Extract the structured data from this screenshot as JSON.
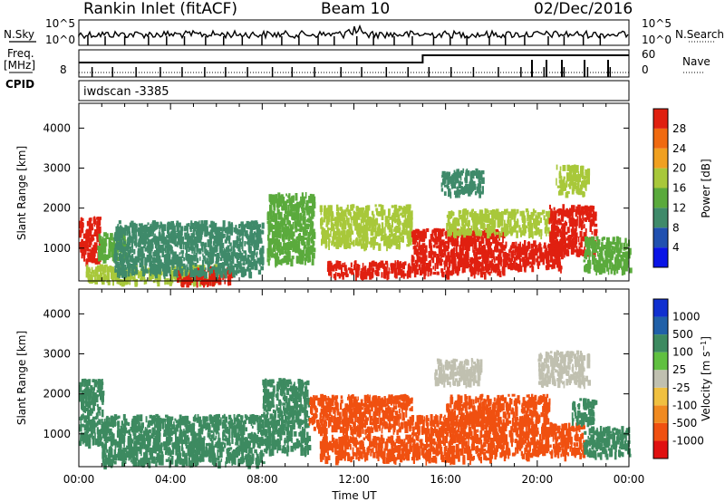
{
  "header": {
    "title": "Rankin Inlet (fitACF)",
    "beam": "Beam 10",
    "date": "02/Dec/2016"
  },
  "side_labels": {
    "nsky": "N.Sky",
    "freq": "Freq.",
    "mhz": "[MHz]",
    "cpid": "CPID",
    "nsearch": "N.Search",
    "nave": "Nave"
  },
  "cpid_text": "iwdscan -3385",
  "colors": {
    "power": [
      "#0a14e6",
      "#2050b0",
      "#3f8a6a",
      "#5aaa3c",
      "#a8c83a",
      "#f0a020",
      "#f06a10",
      "#e02010"
    ],
    "velocity": [
      "#e01010",
      "#f05010",
      "#f08a20",
      "#f0c040",
      "#c0c0b0",
      "#60c040",
      "#3d8a60",
      "#2060a8",
      "#1030d0"
    ]
  },
  "chart_data": [
    {
      "type": "line",
      "panel": "noise",
      "yticks_left": [
        "10^5",
        "10^0"
      ],
      "yticks_right": [
        "10^5",
        "10^0"
      ],
      "series": [
        {
          "name": "N.Sky",
          "x": [
            0,
            24
          ],
          "values": [
            1000,
            1000
          ]
        },
        {
          "name": "N.Search",
          "x": [
            0,
            24
          ],
          "values": [
            900,
            900
          ]
        }
      ]
    },
    {
      "type": "line",
      "panel": "frequency",
      "yticks_left": [
        "8"
      ],
      "yticks_right": [
        "60",
        "0"
      ],
      "series": [
        {
          "name": "Freq.",
          "x": [
            0,
            15,
            15,
            24
          ],
          "values": [
            10.2,
            10.2,
            11.8,
            11.8
          ]
        },
        {
          "name": "Nave",
          "x": [
            0,
            24
          ],
          "values": [
            2,
            2
          ]
        }
      ]
    },
    {
      "type": "heatmap",
      "panel": "power",
      "xlabel": "",
      "ylabel": "Slant Range [km]",
      "xlim": [
        0,
        24
      ],
      "ylim": [
        180,
        4620
      ],
      "yticks": [
        1000,
        2000,
        3000,
        4000
      ],
      "colorbar": {
        "label": "Power [dB]",
        "ticks": [
          4,
          8,
          12,
          16,
          20,
          24,
          28
        ],
        "range": [
          0,
          32
        ]
      },
      "regions": [
        {
          "x0": 0.0,
          "x1": 0.9,
          "y0": 700,
          "y1": 1800,
          "value": 30
        },
        {
          "x0": 0.8,
          "x1": 2.0,
          "y0": 750,
          "y1": 1400,
          "value": 12
        },
        {
          "x0": 0.3,
          "x1": 6.0,
          "y0": 200,
          "y1": 600,
          "value": 18
        },
        {
          "x0": 4.2,
          "x1": 6.6,
          "y0": 180,
          "y1": 550,
          "value": 29
        },
        {
          "x0": 1.5,
          "x1": 8.0,
          "y0": 400,
          "y1": 1700,
          "value": 10
        },
        {
          "x0": 8.2,
          "x1": 10.2,
          "y0": 700,
          "y1": 2400,
          "value": 14
        },
        {
          "x0": 10.5,
          "x1": 14.5,
          "y0": 1100,
          "y1": 2100,
          "value": 18
        },
        {
          "x0": 10.8,
          "x1": 14.5,
          "y0": 350,
          "y1": 700,
          "value": 29
        },
        {
          "x0": 14.5,
          "x1": 18.5,
          "y0": 400,
          "y1": 1500,
          "value": 29
        },
        {
          "x0": 16.0,
          "x1": 20.5,
          "y0": 1400,
          "y1": 2000,
          "value": 16
        },
        {
          "x0": 18.5,
          "x1": 21.0,
          "y0": 550,
          "y1": 1200,
          "value": 29
        },
        {
          "x0": 20.5,
          "x1": 22.5,
          "y0": 900,
          "y1": 2100,
          "value": 28
        },
        {
          "x0": 15.8,
          "x1": 17.6,
          "y0": 2400,
          "y1": 3000,
          "value": 10
        },
        {
          "x0": 20.8,
          "x1": 22.2,
          "y0": 2400,
          "y1": 3100,
          "value": 16
        },
        {
          "x0": 22.0,
          "x1": 24.0,
          "y0": 500,
          "y1": 1300,
          "value": 12
        }
      ]
    },
    {
      "type": "heatmap",
      "panel": "velocity",
      "xlabel": "Time UT",
      "ylabel": "Slant Range [km]",
      "xlim": [
        0,
        24
      ],
      "ylim": [
        180,
        4620
      ],
      "xticks": [
        "00:00",
        "04:00",
        "08:00",
        "12:00",
        "16:00",
        "20:00",
        "00:00"
      ],
      "yticks": [
        1000,
        2000,
        3000,
        4000
      ],
      "colorbar": {
        "label": "Velocity [m s^-1]",
        "ticks": [
          -1000,
          -500,
          -100,
          -25,
          25,
          100,
          500,
          1000
        ]
      },
      "regions": [
        {
          "x0": 0.0,
          "x1": 1.0,
          "y0": 800,
          "y1": 2400,
          "value": 300
        },
        {
          "x0": 1.0,
          "x1": 8.0,
          "y0": 300,
          "y1": 1500,
          "value": 300
        },
        {
          "x0": 8.0,
          "x1": 10.0,
          "y0": 600,
          "y1": 2400,
          "value": 300
        },
        {
          "x0": 10.0,
          "x1": 14.5,
          "y0": 1100,
          "y1": 2000,
          "value": -300
        },
        {
          "x0": 10.5,
          "x1": 14.5,
          "y0": 400,
          "y1": 1000,
          "value": -300
        },
        {
          "x0": 14.5,
          "x1": 18.0,
          "y0": 400,
          "y1": 1500,
          "value": -300
        },
        {
          "x0": 16.0,
          "x1": 20.5,
          "y0": 1300,
          "y1": 2000,
          "value": -300
        },
        {
          "x0": 18.0,
          "x1": 22.0,
          "y0": 500,
          "y1": 1300,
          "value": -300
        },
        {
          "x0": 21.5,
          "x1": 22.5,
          "y0": 1300,
          "y1": 1900,
          "value": 300
        },
        {
          "x0": 15.5,
          "x1": 17.5,
          "y0": 2300,
          "y1": 2900,
          "value": 0
        },
        {
          "x0": 20.0,
          "x1": 22.2,
          "y0": 2300,
          "y1": 3100,
          "value": 0
        },
        {
          "x0": 22.0,
          "x1": 24.0,
          "y0": 500,
          "y1": 1200,
          "value": 60
        }
      ]
    }
  ]
}
